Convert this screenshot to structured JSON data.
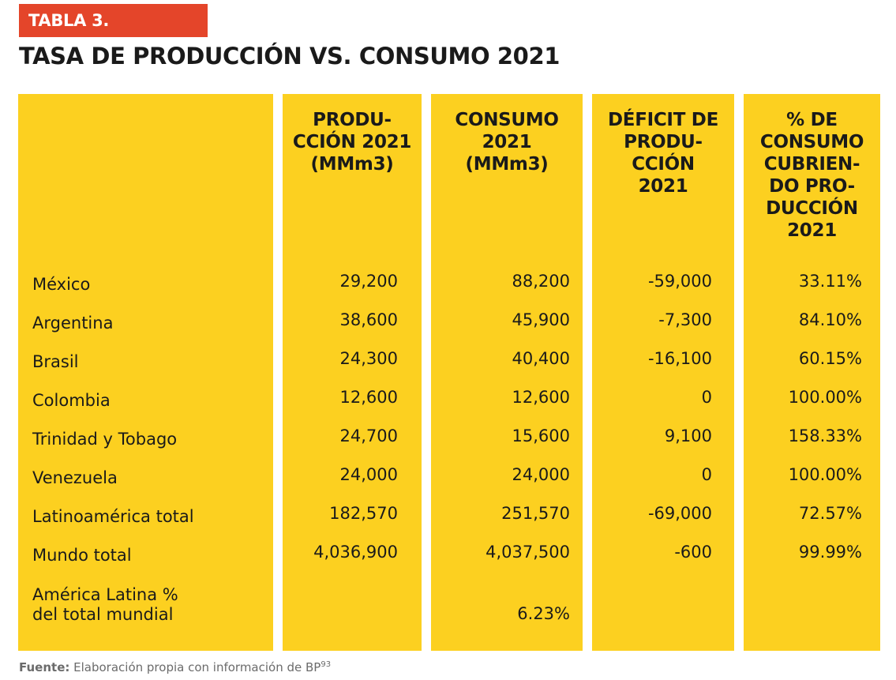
{
  "tag": "TABLA 3.",
  "title": "TASA DE PRODUCCIÓN VS. CONSUMO 2021",
  "headers": [
    "",
    "PRODU-\nCCIÓN 2021\n(MMm3)",
    "CONSUMO\n2021\n(MMm3)",
    "DÉFICIT DE\nPRODU-\nCCIÓN\n2021",
    "% DE\nCONSUMO\nCUBRIEN-\nDO PRO-\nDUCCIÓN\n2021"
  ],
  "rows": [
    {
      "label": "México",
      "produccion": "29,200",
      "consumo": "88,200",
      "deficit": "-59,000",
      "porcentaje": "33.11%"
    },
    {
      "label": "Argentina",
      "produccion": "38,600",
      "consumo": "45,900",
      "deficit": "-7,300",
      "porcentaje": "84.10%"
    },
    {
      "label": "Brasil",
      "produccion": "24,300",
      "consumo": "40,400",
      "deficit": "-16,100",
      "porcentaje": "60.15%"
    },
    {
      "label": "Colombia",
      "produccion": "12,600",
      "consumo": "12,600",
      "deficit": "0",
      "porcentaje": "100.00%"
    },
    {
      "label": "Trinidad y Tobago",
      "produccion": "24,700",
      "consumo": "15,600",
      "deficit": "9,100",
      "porcentaje": "158.33%"
    },
    {
      "label": "Venezuela",
      "produccion": "24,000",
      "consumo": "24,000",
      "deficit": "0",
      "porcentaje": "100.00%"
    },
    {
      "label": "Latinoamérica total",
      "produccion": "182,570",
      "consumo": "251,570",
      "deficit": "-69,000",
      "porcentaje": "72.57%"
    },
    {
      "label": "Mundo total",
      "produccion": "4,036,900",
      "consumo": "4,037,500",
      "deficit": "-600",
      "porcentaje": "99.99%"
    }
  ],
  "last_row": {
    "label": "América Latina %\ndel total mundial",
    "consumo": "6.23%"
  },
  "source": {
    "prefix": "Fuente:",
    "text": " Elaboración propia con información de BP",
    "note": "93"
  },
  "colors": {
    "accent": "#e4452a",
    "table_fill": "#fcd020"
  }
}
